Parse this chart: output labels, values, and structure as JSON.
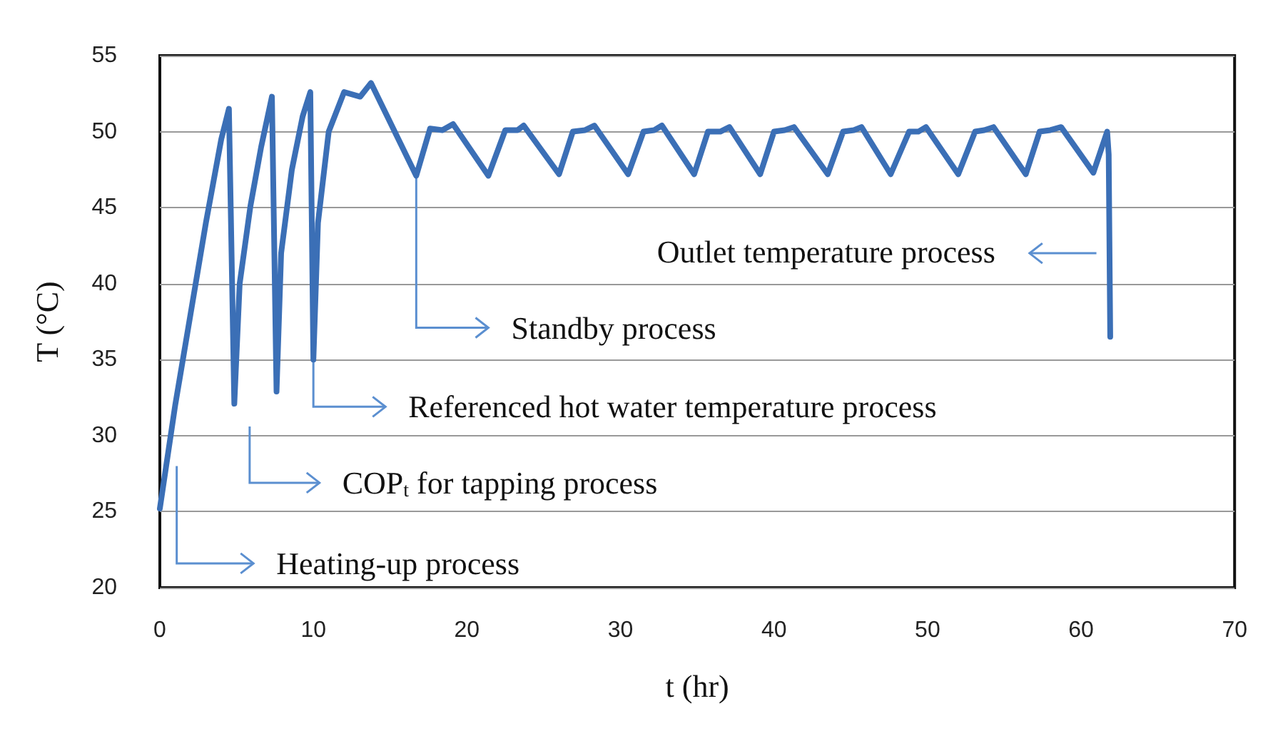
{
  "chart_data": {
    "type": "line",
    "xlabel": "t (hr)",
    "ylabel": "T (°C)",
    "xlim": [
      0,
      70
    ],
    "xticks": [
      0,
      10,
      20,
      30,
      40,
      50,
      60,
      70
    ],
    "ylim": [
      20,
      55
    ],
    "yticks": [
      20,
      25,
      30,
      35,
      40,
      45,
      50,
      55
    ],
    "grid": "y",
    "marker": "none",
    "line_style": "solid",
    "x": [
      0,
      1,
      2,
      3,
      4,
      4.5,
      4.85,
      5.2,
      5.9,
      6.6,
      7.3,
      7.6,
      7.9,
      8.6,
      9.3,
      9.8,
      10.0,
      10.3,
      11.0,
      12.0,
      13.05,
      13.75,
      16.7,
      17.6,
      18.4,
      19.1,
      21.4,
      22.5,
      23.3,
      23.7,
      26.0,
      26.9,
      27.7,
      28.3,
      30.5,
      31.5,
      32.2,
      32.7,
      34.8,
      35.7,
      36.5,
      37.1,
      39.1,
      40.0,
      40.7,
      41.3,
      43.5,
      44.5,
      45.2,
      45.7,
      47.6,
      48.8,
      49.4,
      49.9,
      52.0,
      53.1,
      53.7,
      54.3,
      56.4,
      57.3,
      58.0,
      58.7,
      60.8,
      61.7,
      61.8,
      61.9
    ],
    "series": [
      {
        "color": "#3b6fb6",
        "values": [
          25.2,
          32,
          38,
          44,
          49.5,
          51.5,
          32.1,
          40,
          45.1,
          49,
          52.3,
          32.9,
          42,
          47.5,
          51,
          52.6,
          35.0,
          44,
          50,
          52.6,
          52.3,
          53.2,
          47.1,
          50.2,
          50.1,
          50.5,
          47.1,
          50.1,
          50.1,
          50.4,
          47.2,
          50.0,
          50.1,
          50.4,
          47.2,
          50.0,
          50.1,
          50.4,
          47.2,
          50.0,
          50.0,
          50.3,
          47.2,
          50.0,
          50.1,
          50.3,
          47.2,
          50.0,
          50.1,
          50.3,
          47.2,
          50.0,
          50.0,
          50.3,
          47.2,
          50.0,
          50.1,
          50.3,
          47.2,
          50.0,
          50.1,
          50.3,
          47.3,
          50.0,
          48.5,
          36.5
        ]
      }
    ],
    "annotations": [
      "Heating-up process",
      "COP$_{t}$ for tapping process",
      {
        "text": "Referenced hot water temperature process",
        "x": 10.0,
        "y": 35.0
      },
      {
        "text": "Standby process",
        "x": 16.7,
        "y": 47.1
      },
      "Outlet temperature process"
    ]
  }
}
